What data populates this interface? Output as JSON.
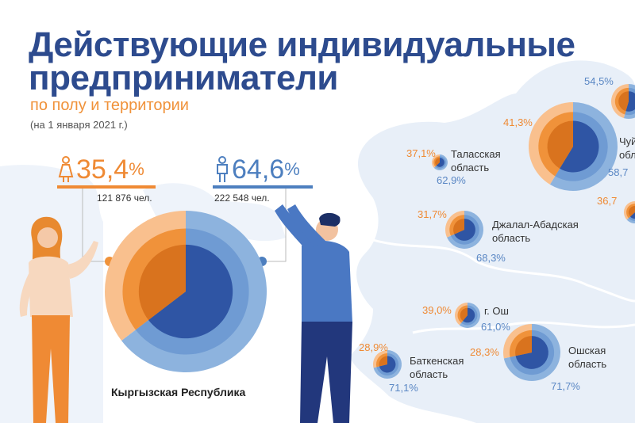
{
  "header": {
    "title_line1": "Действующие индивидуальные",
    "title_line2": "предприниматели",
    "subtitle": "по полу и территории",
    "date": "(на 1 января 2021 г.)"
  },
  "colors": {
    "women": "#f0923a",
    "women_light": "#f9c08e",
    "men": "#2f55a4",
    "men_light": "#8db3de",
    "title": "#2d4b8e",
    "map": "#e6eef8"
  },
  "chart_data": {
    "type": "pie",
    "series": [
      {
        "name": "женщины",
        "share_pct": 35.4,
        "count_label": "121 876 чел."
      },
      {
        "name": "мужчины",
        "share_pct": 64.6,
        "count_label": "222 548 чел."
      }
    ],
    "main_label": "Кыргызская Республика",
    "main": {
      "women_pct": 35.4,
      "men_pct": 64.6,
      "women_text": "35,4",
      "men_text": "64,6",
      "women_count": "121 876 чел.",
      "men_count": "222 548 чел."
    },
    "regions": [
      {
        "key": "issyk",
        "name_lines": [],
        "women_pct": 45.5,
        "men_pct": 54.5,
        "women_text": "",
        "men_text": "54,5%"
      },
      {
        "key": "chui",
        "name_lines": [
          "Чуй",
          "обл"
        ],
        "women_pct": 41.3,
        "men_pct": 58.7,
        "women_text": "41,3%",
        "men_text": "58,7"
      },
      {
        "key": "talas",
        "name_lines": [
          "Таласская",
          "область"
        ],
        "women_pct": 37.1,
        "men_pct": 62.9,
        "women_text": "37,1%",
        "men_text": "62,9%"
      },
      {
        "key": "naryn",
        "name_lines": [],
        "women_pct": 36.7,
        "men_pct": 63.3,
        "women_text": "36,7",
        "men_text": ""
      },
      {
        "key": "jalal",
        "name_lines": [
          "Джалал-Абадская",
          "область"
        ],
        "women_pct": 31.7,
        "men_pct": 68.3,
        "women_text": "31,7%",
        "men_text": "68,3%"
      },
      {
        "key": "osh_city",
        "name_lines": [
          "г. Ош"
        ],
        "women_pct": 39.0,
        "men_pct": 61.0,
        "women_text": "39,0%",
        "men_text": "61,0%"
      },
      {
        "key": "batken",
        "name_lines": [
          "Баткенская",
          "область"
        ],
        "women_pct": 28.9,
        "men_pct": 71.1,
        "women_text": "28,9%",
        "men_text": "71,1%"
      },
      {
        "key": "osh_obl",
        "name_lines": [
          "Ошская",
          "область"
        ],
        "women_pct": 28.3,
        "men_pct": 71.7,
        "women_text": "28,3%",
        "men_text": "71,7%"
      }
    ]
  }
}
